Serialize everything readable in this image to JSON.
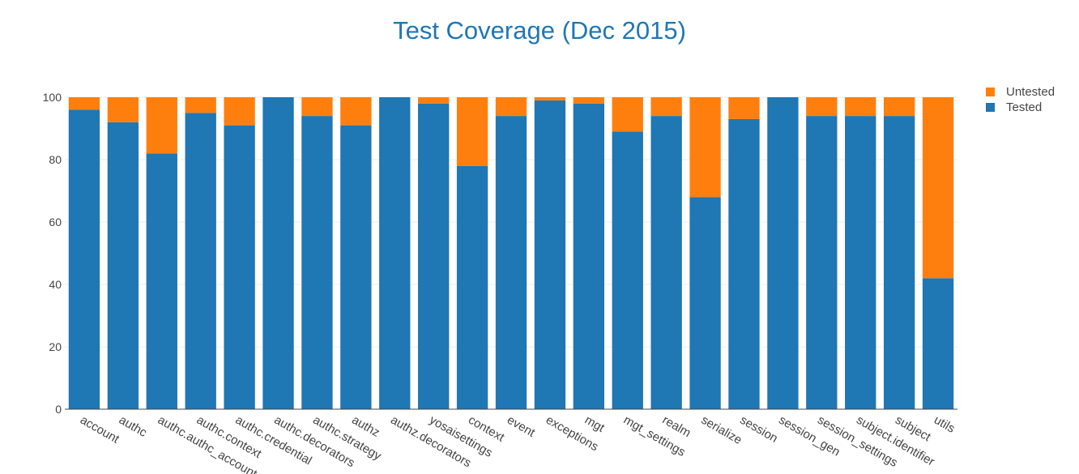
{
  "chart_data": {
    "type": "bar",
    "stacked": true,
    "title": "Test Coverage (Dec 2015)",
    "xlabel": "",
    "ylabel": "",
    "ylim": [
      0,
      100
    ],
    "yticks": [
      0,
      20,
      40,
      60,
      80,
      100
    ],
    "grid": true,
    "legend_position": "top-right",
    "categories": [
      "account",
      "authc",
      "authc.authc_account",
      "authc.context",
      "authc.credential",
      "authc.decorators",
      "authc.strategy",
      "authz",
      "authz.decorators",
      "yosaisettings",
      "context",
      "event",
      "exceptions",
      "mgt",
      "mgt_settings",
      "realm",
      "serialize",
      "session",
      "session_gen",
      "session_settings",
      "subject.identifier",
      "subject",
      "utils"
    ],
    "series": [
      {
        "name": "Tested",
        "color": "#1f77b4",
        "values": [
          96,
          92,
          82,
          95,
          91,
          100,
          94,
          91,
          100,
          98,
          78,
          94,
          99,
          98,
          89,
          94,
          68,
          93,
          100,
          94,
          94,
          94,
          42
        ]
      },
      {
        "name": "Untested",
        "color": "#ff7f0e",
        "values": [
          4,
          8,
          18,
          5,
          9,
          0,
          6,
          9,
          0,
          2,
          22,
          6,
          1,
          2,
          11,
          6,
          32,
          7,
          0,
          6,
          6,
          6,
          58
        ]
      }
    ]
  }
}
